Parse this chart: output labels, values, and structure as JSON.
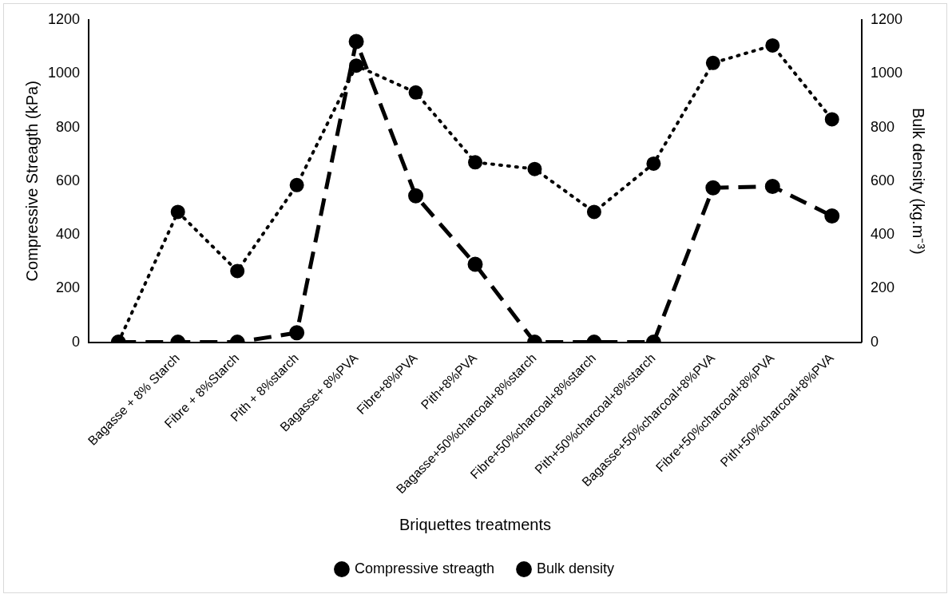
{
  "chart_data": {
    "type": "line",
    "xlabel": "Briquettes treatments",
    "ylabel": "Compressive Streagth (kPa)",
    "y2label": "Bulk density (kg.m⁻³)",
    "categories": [
      null,
      "Bagasse + 8% Starch",
      "Fibre + 8%Starch",
      "Pith + 8%starch",
      "Bagasse+ 8%PVA",
      "Fibre+8%PVA",
      "Pith+8%PVA",
      "Bagasse+50%charcoal+8%starch",
      "Fibre+50%charcoal+8%starch",
      "Pith+50%charcoal+8%starch",
      "Bagasse+50%charcoal+8%PVA",
      "Fibre+50%charcoal+8%PVA",
      "Pith+50%charcoal+8%PVA"
    ],
    "series": [
      {
        "name": "Compressive streagth",
        "color": "#000000",
        "line_style": "dashed",
        "values": [
          0,
          0,
          0,
          35,
          1120,
          545,
          290,
          0,
          0,
          0,
          575,
          580,
          470
        ]
      },
      {
        "name": "Bulk density",
        "color": "#000000",
        "line_style": "dotted",
        "axis": "y2",
        "values": [
          0,
          485,
          265,
          585,
          1030,
          930,
          670,
          645,
          485,
          665,
          1040,
          1105,
          830
        ]
      }
    ],
    "ylim": [
      0,
      1200
    ],
    "yticks": [
      0,
      200,
      400,
      600,
      800,
      1000,
      1200
    ],
    "y2lim": [
      0,
      1200
    ],
    "y2ticks": [
      0,
      200,
      400,
      600,
      800,
      1000,
      1200
    ],
    "grid": false,
    "legend": "bottom",
    "marker": "circle"
  }
}
